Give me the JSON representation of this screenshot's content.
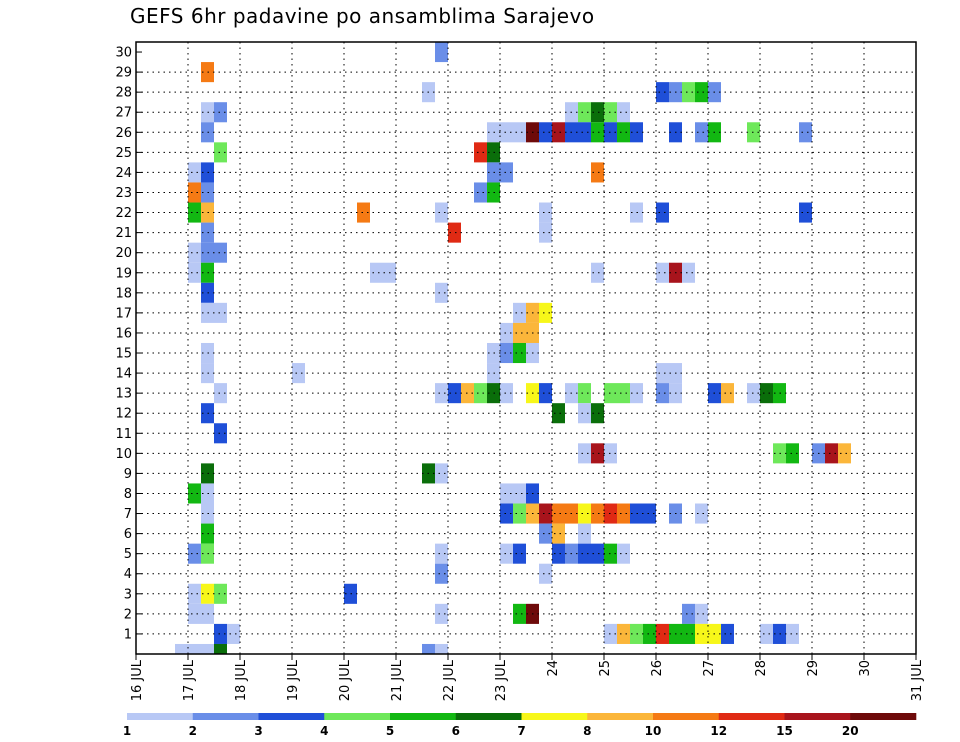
{
  "chart_data": {
    "type": "heatmap",
    "title": "GEFS 6hr padavine po ansamblima Sarajevo",
    "xlabel": "",
    "ylabel": "",
    "x_start": "16 JUL",
    "x_steps_per_day": 4,
    "xlim_days": [
      0,
      15
    ],
    "x_tick_labels": [
      "16 JUL",
      "17 JUL",
      "18 JUL",
      "19 JUL",
      "20 JUL",
      "21 JUL",
      "22 JUL",
      "23 JUL",
      "24",
      "25",
      "26",
      "27",
      "28",
      "29",
      "30",
      "31 JUL"
    ],
    "y_tick_labels": [
      "1",
      "2",
      "3",
      "4",
      "5",
      "6",
      "7",
      "8",
      "9",
      "10",
      "11",
      "12",
      "13",
      "14",
      "15",
      "16",
      "17",
      "18",
      "19",
      "20",
      "21",
      "22",
      "23",
      "24",
      "25",
      "26",
      "27",
      "28",
      "29",
      "30"
    ],
    "ylim": [
      0,
      30
    ],
    "grid": true,
    "legend_placement": "bottom",
    "legend": {
      "labels": [
        "1",
        "2",
        "3",
        "4",
        "5",
        "6",
        "7",
        "8",
        "10",
        "12",
        "15",
        "20"
      ],
      "colors": [
        "#b8c8f5",
        "#6a8ee8",
        "#1f4fd8",
        "#6ee85a",
        "#12b812",
        "#0a6e0a",
        "#f7f71a",
        "#fbb63a",
        "#f57a14",
        "#e02a14",
        "#a8141c",
        "#6e0a0a"
      ]
    },
    "cells": [
      [
        30,
        23,
        1
      ],
      [
        29,
        5,
        8
      ],
      [
        28,
        22,
        0
      ],
      [
        28,
        40,
        2
      ],
      [
        28,
        41,
        1
      ],
      [
        28,
        42,
        3
      ],
      [
        28,
        43,
        4
      ],
      [
        28,
        44,
        1
      ],
      [
        27,
        5,
        0
      ],
      [
        27,
        6,
        1
      ],
      [
        27,
        33,
        0
      ],
      [
        27,
        34,
        3
      ],
      [
        27,
        35,
        5
      ],
      [
        27,
        36,
        3
      ],
      [
        27,
        37,
        0
      ],
      [
        26,
        5,
        1
      ],
      [
        26,
        27,
        0
      ],
      [
        26,
        28,
        0
      ],
      [
        26,
        29,
        0
      ],
      [
        26,
        30,
        11
      ],
      [
        26,
        31,
        2
      ],
      [
        26,
        32,
        10
      ],
      [
        26,
        33,
        2
      ],
      [
        26,
        34,
        2
      ],
      [
        26,
        35,
        4
      ],
      [
        26,
        36,
        2
      ],
      [
        26,
        37,
        4
      ],
      [
        26,
        38,
        2
      ],
      [
        26,
        41,
        2
      ],
      [
        26,
        43,
        1
      ],
      [
        26,
        44,
        4
      ],
      [
        26,
        47,
        3
      ],
      [
        26,
        51,
        1
      ],
      [
        25,
        6,
        3
      ],
      [
        25,
        26,
        9
      ],
      [
        25,
        27,
        5
      ],
      [
        24,
        4,
        0
      ],
      [
        24,
        5,
        2
      ],
      [
        24,
        27,
        1
      ],
      [
        24,
        28,
        1
      ],
      [
        24,
        35,
        8
      ],
      [
        23,
        4,
        8
      ],
      [
        23,
        5,
        1
      ],
      [
        23,
        26,
        1
      ],
      [
        23,
        27,
        4
      ],
      [
        22,
        4,
        4
      ],
      [
        22,
        5,
        7
      ],
      [
        22,
        17,
        8
      ],
      [
        22,
        23,
        0
      ],
      [
        22,
        31,
        0
      ],
      [
        22,
        38,
        0
      ],
      [
        22,
        40,
        2
      ],
      [
        22,
        51,
        2
      ],
      [
        21,
        5,
        1
      ],
      [
        21,
        24,
        9
      ],
      [
        21,
        31,
        0
      ],
      [
        20,
        4,
        0
      ],
      [
        20,
        5,
        1
      ],
      [
        20,
        6,
        1
      ],
      [
        19,
        4,
        0
      ],
      [
        19,
        5,
        4
      ],
      [
        19,
        18,
        0
      ],
      [
        19,
        19,
        0
      ],
      [
        19,
        35,
        0
      ],
      [
        19,
        40,
        0
      ],
      [
        19,
        41,
        10
      ],
      [
        19,
        42,
        0
      ],
      [
        18,
        5,
        2
      ],
      [
        18,
        23,
        0
      ],
      [
        17,
        5,
        0
      ],
      [
        17,
        6,
        0
      ],
      [
        17,
        29,
        0
      ],
      [
        17,
        30,
        7
      ],
      [
        17,
        31,
        6
      ],
      [
        16,
        28,
        0
      ],
      [
        16,
        29,
        7
      ],
      [
        16,
        30,
        7
      ],
      [
        15,
        5,
        0
      ],
      [
        15,
        27,
        0
      ],
      [
        15,
        28,
        1
      ],
      [
        15,
        29,
        4
      ],
      [
        15,
        30,
        0
      ],
      [
        14,
        5,
        0
      ],
      [
        14,
        12,
        0
      ],
      [
        14,
        27,
        0
      ],
      [
        14,
        40,
        0
      ],
      [
        14,
        41,
        0
      ],
      [
        13,
        6,
        0
      ],
      [
        13,
        23,
        0
      ],
      [
        13,
        24,
        2
      ],
      [
        13,
        25,
        7
      ],
      [
        13,
        26,
        3
      ],
      [
        13,
        27,
        5
      ],
      [
        13,
        28,
        0
      ],
      [
        13,
        30,
        6
      ],
      [
        13,
        31,
        2
      ],
      [
        13,
        33,
        0
      ],
      [
        13,
        34,
        3
      ],
      [
        13,
        36,
        3
      ],
      [
        13,
        37,
        3
      ],
      [
        13,
        38,
        0
      ],
      [
        13,
        40,
        1
      ],
      [
        13,
        41,
        0
      ],
      [
        13,
        44,
        2
      ],
      [
        13,
        45,
        7
      ],
      [
        13,
        47,
        0
      ],
      [
        13,
        48,
        5
      ],
      [
        13,
        49,
        4
      ],
      [
        12,
        5,
        2
      ],
      [
        12,
        32,
        5
      ],
      [
        12,
        34,
        0
      ],
      [
        12,
        35,
        5
      ],
      [
        11,
        6,
        2
      ],
      [
        10,
        34,
        0
      ],
      [
        10,
        35,
        10
      ],
      [
        10,
        36,
        0
      ],
      [
        10,
        49,
        3
      ],
      [
        10,
        50,
        4
      ],
      [
        10,
        52,
        1
      ],
      [
        10,
        53,
        10
      ],
      [
        10,
        54,
        7
      ],
      [
        9,
        5,
        5
      ],
      [
        9,
        22,
        5
      ],
      [
        9,
        23,
        0
      ],
      [
        8,
        4,
        4
      ],
      [
        8,
        5,
        0
      ],
      [
        8,
        28,
        0
      ],
      [
        8,
        29,
        0
      ],
      [
        8,
        30,
        2
      ],
      [
        7,
        5,
        0
      ],
      [
        7,
        28,
        2
      ],
      [
        7,
        29,
        3
      ],
      [
        7,
        30,
        7
      ],
      [
        7,
        31,
        10
      ],
      [
        7,
        32,
        8
      ],
      [
        7,
        33,
        8
      ],
      [
        7,
        34,
        6
      ],
      [
        7,
        35,
        8
      ],
      [
        7,
        36,
        9
      ],
      [
        7,
        37,
        8
      ],
      [
        7,
        38,
        2
      ],
      [
        7,
        39,
        2
      ],
      [
        7,
        41,
        1
      ],
      [
        7,
        43,
        0
      ],
      [
        6,
        5,
        4
      ],
      [
        6,
        31,
        1
      ],
      [
        6,
        32,
        7
      ],
      [
        6,
        34,
        0
      ],
      [
        5,
        4,
        1
      ],
      [
        5,
        5,
        3
      ],
      [
        5,
        23,
        0
      ],
      [
        5,
        28,
        0
      ],
      [
        5,
        29,
        2
      ],
      [
        5,
        32,
        2
      ],
      [
        5,
        33,
        1
      ],
      [
        5,
        34,
        2
      ],
      [
        5,
        35,
        2
      ],
      [
        5,
        36,
        4
      ],
      [
        5,
        37,
        0
      ],
      [
        4,
        23,
        1
      ],
      [
        4,
        31,
        0
      ],
      [
        3,
        4,
        0
      ],
      [
        3,
        5,
        6
      ],
      [
        3,
        6,
        3
      ],
      [
        3,
        16,
        2
      ],
      [
        2,
        4,
        0
      ],
      [
        2,
        5,
        0
      ],
      [
        2,
        23,
        0
      ],
      [
        2,
        29,
        4
      ],
      [
        2,
        30,
        11
      ],
      [
        2,
        42,
        1
      ],
      [
        2,
        43,
        0
      ],
      [
        1,
        6,
        2
      ],
      [
        1,
        7,
        0
      ],
      [
        1,
        36,
        0
      ],
      [
        1,
        37,
        7
      ],
      [
        1,
        38,
        3
      ],
      [
        1,
        39,
        4
      ],
      [
        1,
        40,
        9
      ],
      [
        1,
        41,
        4
      ],
      [
        1,
        42,
        4
      ],
      [
        1,
        43,
        6
      ],
      [
        1,
        44,
        6
      ],
      [
        1,
        45,
        2
      ],
      [
        1,
        48,
        0
      ],
      [
        1,
        49,
        2
      ],
      [
        1,
        50,
        0
      ],
      [
        0,
        3,
        0
      ],
      [
        0,
        4,
        0
      ],
      [
        0,
        5,
        0
      ],
      [
        0,
        6,
        5
      ],
      [
        0,
        22,
        1
      ],
      [
        0,
        23,
        0
      ]
    ]
  }
}
